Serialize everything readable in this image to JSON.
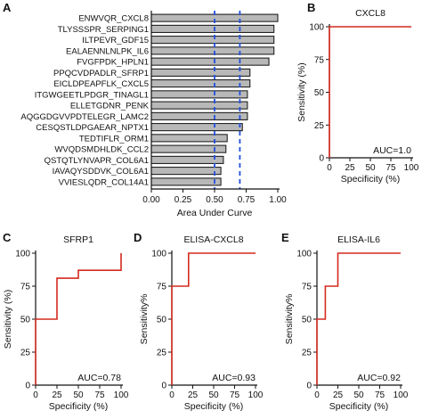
{
  "chart_data": [
    {
      "panel": "A",
      "type": "bar",
      "orientation": "horizontal",
      "xlabel": "Area Under Curve",
      "xlim": [
        0,
        1.0
      ],
      "xticks": [
        "0.00",
        "0.25",
        "0.50",
        "0.75",
        "1.00"
      ],
      "reference_lines": [
        0.5,
        0.7
      ],
      "bar_color": "#b8b8b8",
      "ref_line_color": "#1f4fe0",
      "categories": [
        "ENWVQR_CXCL8",
        "TLYSSSPR_SERPING1",
        "ILTPEVR_GDF15",
        "EALAENNLNLPK_IL6",
        "FVGFPDK_HPLN1",
        "PPQCVDPADLR_SFRP1",
        "EICLDPEAPFLK_CXCL5",
        "ITGWGEETLPDGR_TINAGL1",
        "ELLETGDNR_PENK",
        "AQGGDGVVPDTELEGR_LAMC2",
        "CESQSTLDPGAEAR_NPTX1",
        "TEDTIFLR_ORM1",
        "WVQDSMDHLDK_CCL2",
        "QSTQTLYNVAPR_COL6A1",
        "IAVAQYSDDVK_COL6A1",
        "VVIESLQDR_COL14A1"
      ],
      "values": [
        1.0,
        0.97,
        0.97,
        0.97,
        0.93,
        0.78,
        0.78,
        0.76,
        0.76,
        0.76,
        0.72,
        0.6,
        0.59,
        0.57,
        0.55,
        0.55
      ]
    },
    {
      "panel": "B",
      "type": "line",
      "title": "CXCL8",
      "xlabel": "Specificity (%)",
      "ylabel": "Sensitivity (%)",
      "xlim": [
        0,
        100
      ],
      "ylim": [
        0,
        100
      ],
      "xticks": [
        "0",
        "25",
        "50",
        "75",
        "100"
      ],
      "yticks": [
        "0",
        "25",
        "50",
        "75",
        "100"
      ],
      "annotation": "AUC=1.0",
      "line_color": "#d42a1e",
      "x": [
        0,
        0,
        100
      ],
      "y": [
        0,
        100,
        100
      ]
    },
    {
      "panel": "C",
      "type": "line",
      "title": "SFRP1",
      "xlabel": "Specificity  (%)",
      "ylabel": "Sensitivity (%)",
      "xlim": [
        0,
        100
      ],
      "ylim": [
        0,
        100
      ],
      "xticks": [
        "0",
        "25",
        "50",
        "75",
        "100"
      ],
      "yticks": [
        "0",
        "25",
        "50",
        "75",
        "100"
      ],
      "annotation": "AUC=0.78",
      "line_color": "#d42a1e",
      "x": [
        0,
        0,
        25,
        25,
        50,
        50,
        100,
        100
      ],
      "y": [
        0,
        50,
        50,
        81,
        81,
        87,
        87,
        100
      ]
    },
    {
      "panel": "D",
      "type": "line",
      "title": "ELISA-CXCL8",
      "xlabel": "Specificity (%)",
      "ylabel": "Sensitivity%",
      "xlim": [
        0,
        100
      ],
      "ylim": [
        0,
        100
      ],
      "xticks": [
        "0",
        "25",
        "50",
        "75",
        "100"
      ],
      "yticks": [
        "0",
        "25",
        "50",
        "75",
        "100"
      ],
      "annotation": "AUC=0.93",
      "line_color": "#d42a1e",
      "x": [
        0,
        0,
        20,
        20,
        100
      ],
      "y": [
        0,
        75,
        75,
        100,
        100
      ]
    },
    {
      "panel": "E",
      "type": "line",
      "title": "ELISA-IL6",
      "xlabel": "Specificity (%)",
      "ylabel": "Sensitivity%",
      "xlim": [
        0,
        100
      ],
      "ylim": [
        0,
        100
      ],
      "xticks": [
        "0",
        "25",
        "50",
        "75",
        "100"
      ],
      "yticks": [
        "0",
        "25",
        "50",
        "75",
        "100"
      ],
      "annotation": "AUC=0.92",
      "line_color": "#d42a1e",
      "x": [
        0,
        0,
        10,
        10,
        25,
        25,
        100
      ],
      "y": [
        0,
        50,
        50,
        75,
        75,
        100,
        100
      ]
    }
  ]
}
